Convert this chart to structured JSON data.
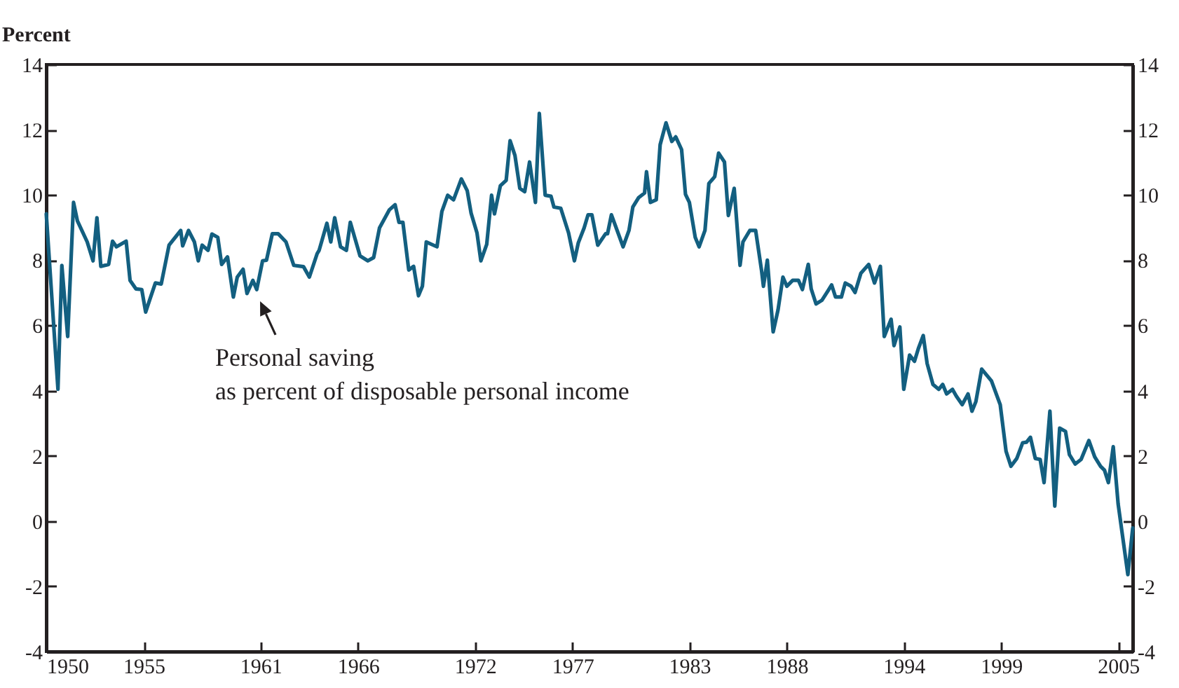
{
  "chart_data": {
    "type": "line",
    "ylabel": "Percent",
    "x": [
      1950.0,
      1950.6,
      1950.8,
      1951.1,
      1951.4,
      1951.6,
      1952.1,
      1952.4,
      1952.6,
      1952.8,
      1953.2,
      1953.4,
      1953.6,
      1954.1,
      1954.3,
      1954.6,
      1954.9,
      1955.1,
      1955.3,
      1955.6,
      1955.9,
      1956.3,
      1956.9,
      1957.0,
      1957.3,
      1957.6,
      1957.8,
      1958.0,
      1958.3,
      1958.5,
      1958.8,
      1959.0,
      1959.3,
      1959.6,
      1959.8,
      1960.1,
      1960.3,
      1960.6,
      1960.8,
      1961.1,
      1961.3,
      1961.6,
      1961.9,
      1962.3,
      1962.7,
      1963.2,
      1963.5,
      1963.9,
      1964.0,
      1964.4,
      1964.6,
      1964.8,
      1965.1,
      1965.4,
      1965.6,
      1966.1,
      1966.5,
      1966.8,
      1967.1,
      1967.6,
      1967.9,
      1968.1,
      1968.3,
      1968.6,
      1968.85,
      1969.1,
      1969.3,
      1969.5,
      1970.05,
      1970.3,
      1970.6,
      1970.9,
      1971.3,
      1971.6,
      1971.8,
      1972.1,
      1972.3,
      1972.6,
      1972.85,
      1973.0,
      1973.3,
      1973.6,
      1973.8,
      1974.05,
      1974.3,
      1974.55,
      1974.8,
      1975.1,
      1975.3,
      1975.6,
      1975.9,
      1976.05,
      1976.4,
      1976.8,
      1977.1,
      1977.3,
      1977.6,
      1977.8,
      1978.0,
      1978.3,
      1978.7,
      1978.8,
      1979.0,
      1979.6,
      1979.9,
      1980.1,
      1980.4,
      1980.7,
      1980.8,
      1981.0,
      1981.3,
      1981.5,
      1981.8,
      1982.1,
      1982.3,
      1982.6,
      1982.8,
      1983.0,
      1983.3,
      1983.5,
      1983.8,
      1984.0,
      1984.3,
      1984.5,
      1984.8,
      1985.0,
      1985.3,
      1985.6,
      1985.75,
      1986.1,
      1986.4,
      1986.7,
      1986.8,
      1987.0,
      1987.3,
      1987.55,
      1987.8,
      1988.0,
      1988.3,
      1988.6,
      1988.8,
      1989.1,
      1989.25,
      1989.5,
      1989.8,
      1990.1,
      1990.3,
      1990.5,
      1990.8,
      1991.0,
      1991.3,
      1991.5,
      1991.8,
      1992.2,
      1992.5,
      1992.8,
      1993.0,
      1993.35,
      1993.5,
      1993.8,
      1994.0,
      1994.3,
      1994.55,
      1994.75,
      1995.0,
      1995.2,
      1995.5,
      1995.8,
      1996.0,
      1996.2,
      1996.5,
      1996.7,
      1997.0,
      1997.3,
      1997.5,
      1997.7,
      1998.0,
      1998.5,
      1998.95,
      1999.25,
      1999.5,
      1999.8,
      2000.1,
      2000.3,
      2000.5,
      2000.75,
      2001.0,
      2001.2,
      2001.5,
      2001.75,
      2002.0,
      2002.3,
      2002.5,
      2002.8,
      2003.1,
      2003.5,
      2003.8,
      2004.1,
      2004.3,
      2004.5,
      2004.75,
      2005.0,
      2005.5,
      2005.75
    ],
    "series": [
      {
        "color": "#135f80",
        "values": [
          9.42,
          4.04,
          7.84,
          5.66,
          9.77,
          9.2,
          8.56,
          7.98,
          9.3,
          7.81,
          7.87,
          8.58,
          8.41,
          8.58,
          7.38,
          7.12,
          7.1,
          6.41,
          6.77,
          7.3,
          7.27,
          8.46,
          8.91,
          8.44,
          8.91,
          8.56,
          7.98,
          8.46,
          8.3,
          8.8,
          8.7,
          7.87,
          8.1,
          6.87,
          7.48,
          7.72,
          6.98,
          7.38,
          7.1,
          7.98,
          8.0,
          8.81,
          8.81,
          8.56,
          7.84,
          7.8,
          7.48,
          8.2,
          8.3,
          9.13,
          8.56,
          9.3,
          8.41,
          8.3,
          9.16,
          8.13,
          7.98,
          8.08,
          8.99,
          9.54,
          9.7,
          9.16,
          9.16,
          7.7,
          7.81,
          6.91,
          7.2,
          8.56,
          8.41,
          9.49,
          9.99,
          9.85,
          10.49,
          10.13,
          9.44,
          8.84,
          7.98,
          8.48,
          9.99,
          9.42,
          10.28,
          10.45,
          11.66,
          11.21,
          10.2,
          10.1,
          11.01,
          9.77,
          12.5,
          9.99,
          9.96,
          9.63,
          9.59,
          8.84,
          7.98,
          8.53,
          8.99,
          9.39,
          9.39,
          8.46,
          8.81,
          8.81,
          9.39,
          8.41,
          8.91,
          9.63,
          9.92,
          10.06,
          10.71,
          9.77,
          9.85,
          11.54,
          12.21,
          11.64,
          11.78,
          11.39,
          10.02,
          9.77,
          8.7,
          8.41,
          8.91,
          10.35,
          10.56,
          11.28,
          11.01,
          9.37,
          10.2,
          7.84,
          8.56,
          8.91,
          8.91,
          7.7,
          7.2,
          8.0,
          5.8,
          6.48,
          7.48,
          7.2,
          7.38,
          7.38,
          7.1,
          7.87,
          7.12,
          6.66,
          6.77,
          7.05,
          7.24,
          6.87,
          6.87,
          7.3,
          7.2,
          7.01,
          7.6,
          7.87,
          7.3,
          7.81,
          5.66,
          6.19,
          5.38,
          5.95,
          4.04,
          5.09,
          4.9,
          5.29,
          5.69,
          4.83,
          4.19,
          4.04,
          4.19,
          3.9,
          4.04,
          3.83,
          3.57,
          3.9,
          3.37,
          3.66,
          4.66,
          4.3,
          3.57,
          2.14,
          1.68,
          1.92,
          2.4,
          2.42,
          2.57,
          1.92,
          1.89,
          1.18,
          3.37,
          0.46,
          2.85,
          2.75,
          2.04,
          1.75,
          1.89,
          2.47,
          1.97,
          1.68,
          1.56,
          1.18,
          2.28,
          0.53,
          -1.64,
          -0.21
        ]
      }
    ],
    "xlim": [
      1950,
      2005.75
    ],
    "xticks": [
      1950,
      1955,
      1961,
      1966,
      1972,
      1977,
      1983,
      1988,
      1994,
      1999,
      2005
    ],
    "ylim": [
      -4,
      14
    ],
    "yticks": [
      -4,
      -2,
      0,
      2,
      4,
      6,
      8,
      10,
      12,
      14
    ],
    "y2lim": [
      -4,
      14
    ],
    "y2ticks": [
      -4,
      -2,
      0,
      2,
      4,
      6,
      8,
      10,
      12,
      14
    ],
    "annotations": [
      {
        "text": "Personal saving\nas percent of disposable personal income",
        "x": 1960.9,
        "y": 7.0
      }
    ],
    "grid": false
  }
}
